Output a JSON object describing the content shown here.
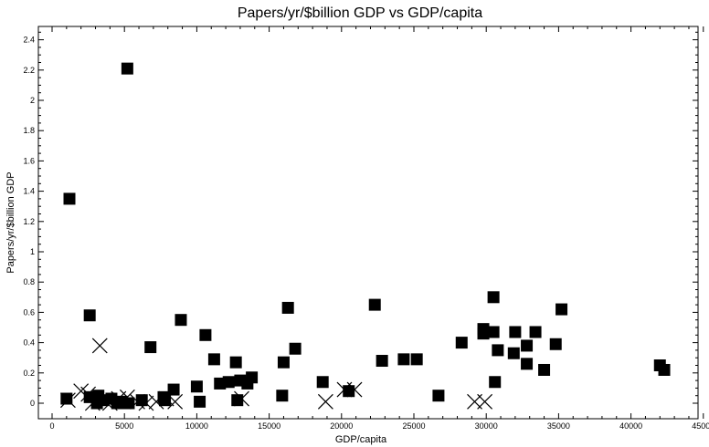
{
  "chart_data": {
    "type": "scatter",
    "title": "Papers/yr/$billion GDP vs GDP/capita",
    "xlabel": "GDP/capita",
    "ylabel": "Papers/yr/$billion GDP",
    "xlim": [
      0,
      45000
    ],
    "ylim": [
      -0.1,
      2.45
    ],
    "x_ticks": [
      0,
      5000,
      10000,
      15000,
      20000,
      25000,
      30000,
      35000,
      40000,
      45000
    ],
    "x_tick_labels": [
      "0",
      "5000",
      "10000",
      "15000",
      "20000",
      "25000",
      "30000",
      "35000",
      "40000",
      "45000"
    ],
    "y_ticks": [
      0,
      0.2,
      0.4,
      0.6,
      0.8,
      1,
      1.2,
      1.4,
      1.6,
      1.8,
      2,
      2.2,
      2.4
    ],
    "y_tick_labels": [
      "0",
      "0.2",
      "0.4",
      "0.6",
      "0.8",
      "1",
      "1.2",
      "1.4",
      "1.6",
      "1.8",
      "2",
      "2.2",
      "2.4"
    ],
    "grid": false,
    "series": [
      {
        "marker": "square",
        "color": "#000000",
        "points": [
          [
            5200,
            2.21
          ],
          [
            1200,
            1.35
          ],
          [
            2600,
            0.58
          ],
          [
            6800,
            0.37
          ],
          [
            8900,
            0.55
          ],
          [
            10600,
            0.45
          ],
          [
            11200,
            0.29
          ],
          [
            12700,
            0.27
          ],
          [
            16300,
            0.63
          ],
          [
            16800,
            0.36
          ],
          [
            16000,
            0.27
          ],
          [
            13800,
            0.17
          ],
          [
            13500,
            0.13
          ],
          [
            13000,
            0.15
          ],
          [
            12200,
            0.14
          ],
          [
            11600,
            0.13
          ],
          [
            10000,
            0.11
          ],
          [
            8400,
            0.09
          ],
          [
            18700,
            0.14
          ],
          [
            20500,
            0.08
          ],
          [
            22300,
            0.65
          ],
          [
            22800,
            0.28
          ],
          [
            24300,
            0.29
          ],
          [
            25200,
            0.29
          ],
          [
            26700,
            0.05
          ],
          [
            28300,
            0.4
          ],
          [
            29800,
            0.46
          ],
          [
            29800,
            0.49
          ],
          [
            30500,
            0.7
          ],
          [
            30500,
            0.47
          ],
          [
            30600,
            0.14
          ],
          [
            30800,
            0.35
          ],
          [
            31900,
            0.33
          ],
          [
            32000,
            0.47
          ],
          [
            32800,
            0.38
          ],
          [
            32800,
            0.26
          ],
          [
            33400,
            0.47
          ],
          [
            34000,
            0.22
          ],
          [
            34800,
            0.39
          ],
          [
            35200,
            0.62
          ],
          [
            42000,
            0.25
          ],
          [
            42300,
            0.22
          ],
          [
            1000,
            0.03
          ],
          [
            2600,
            0.04
          ],
          [
            3200,
            0.05
          ],
          [
            3500,
            0.02
          ],
          [
            4100,
            0.03
          ],
          [
            4800,
            0.01
          ],
          [
            5300,
            0.0
          ],
          [
            6200,
            0.02
          ],
          [
            7700,
            0.04
          ],
          [
            7800,
            0.02
          ],
          [
            10200,
            0.01
          ],
          [
            12800,
            0.02
          ],
          [
            15900,
            0.05
          ],
          [
            3100,
            0.0
          ],
          [
            4500,
            0.0
          ]
        ]
      },
      {
        "marker": "x",
        "color": "#000000",
        "points": [
          [
            1100,
            0.02
          ],
          [
            2000,
            0.08
          ],
          [
            2500,
            0.06
          ],
          [
            3300,
            0.38
          ],
          [
            3600,
            0.02
          ],
          [
            4000,
            0.0
          ],
          [
            4600,
            0.03
          ],
          [
            5200,
            0.04
          ],
          [
            5900,
            0.01
          ],
          [
            6500,
            0.0
          ],
          [
            7200,
            0.01
          ],
          [
            7900,
            0.03
          ],
          [
            8500,
            0.01
          ],
          [
            13100,
            0.03
          ],
          [
            18900,
            0.01
          ],
          [
            20200,
            0.09
          ],
          [
            20900,
            0.09
          ],
          [
            29200,
            0.01
          ],
          [
            29900,
            0.01
          ],
          [
            2800,
            0.0
          ],
          [
            3800,
            0.02
          ]
        ]
      }
    ]
  }
}
